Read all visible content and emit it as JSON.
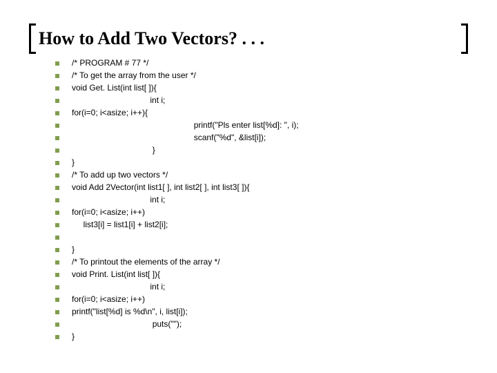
{
  "slide": {
    "title": "How to Add Two Vectors? . . .",
    "title_font": "Comic Sans MS",
    "title_fontsize": 26,
    "title_color": "#000000",
    "bullet_color": "#809e4e",
    "bullet_size": 6,
    "code_font": "Tahoma",
    "code_fontsize": 12,
    "code_color": "#000000",
    "background_color": "#ffffff",
    "lines": [
      "/* PROGRAM # 77 */",
      "/* To get the array from the user */",
      "void Get. List(int list[ ]){",
      "                                  int i;",
      "for(i=0; i<asize; i++){",
      "                                                     printf(\"Pls enter list[%d]: \", i);",
      "                                                     scanf(\"%d\", &list[i]);",
      "                                   }",
      "}",
      "/* To add up two vectors */",
      "void Add 2Vector(int list1[ ], int list2[ ], int list3[ ]){",
      "                                  int i;",
      "for(i=0; i<asize; i++)",
      "     list3[i] = list1[i] + list2[i];",
      "",
      "}",
      "/* To printout the elements of the array */",
      "void Print. List(int list[ ]){",
      "                                  int i;",
      "for(i=0; i<asize; i++)",
      "printf(\"list[%d] is %d\\n\", i, list[i]);",
      "                                   puts(\"\");",
      "}"
    ]
  }
}
